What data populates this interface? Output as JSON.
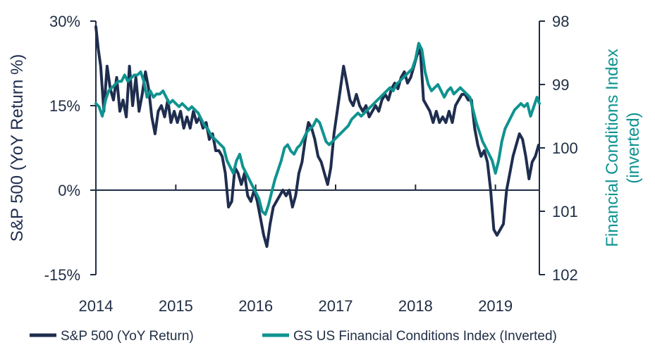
{
  "chart_data": {
    "type": "line",
    "left_axis": {
      "label": "S&P 500 (YoY Return %)",
      "range": [
        -15,
        30
      ],
      "ticks": [
        {
          "value": 30,
          "label": "30%"
        },
        {
          "value": 15,
          "label": "15%"
        },
        {
          "value": 0,
          "label": "0%"
        },
        {
          "value": -15,
          "label": "-15%"
        }
      ]
    },
    "right_axis": {
      "label_line1": "Financial Conditions Index",
      "label_line2": "(inverted)",
      "range": [
        98,
        102
      ],
      "inverted": true,
      "ticks": [
        {
          "value": 98,
          "label": "98"
        },
        {
          "value": 99,
          "label": "99"
        },
        {
          "value": 100,
          "label": "100"
        },
        {
          "value": 101,
          "label": "101"
        },
        {
          "value": 102,
          "label": "102"
        }
      ]
    },
    "x_axis": {
      "range": [
        2014.0,
        2019.55
      ],
      "ticks": [
        {
          "value": 2014,
          "label": "2014"
        },
        {
          "value": 2015,
          "label": "2015"
        },
        {
          "value": 2016,
          "label": "2016"
        },
        {
          "value": 2017,
          "label": "2017"
        },
        {
          "value": 2018,
          "label": "2018"
        },
        {
          "value": 2019,
          "label": "2019"
        }
      ]
    },
    "colors": {
      "sp500": "#1f2d4e",
      "fci": "#0f9390",
      "axis": "#1f2d44"
    },
    "legend_position": "bottom",
    "series": [
      {
        "name": "S&P 500 (YoY Return)",
        "axis": "left",
        "color": "#1f2d4e",
        "points": [
          [
            2014.0,
            29
          ],
          [
            2014.03,
            25
          ],
          [
            2014.06,
            22
          ],
          [
            2014.1,
            14
          ],
          [
            2014.14,
            22
          ],
          [
            2014.18,
            18
          ],
          [
            2014.22,
            16
          ],
          [
            2014.26,
            20
          ],
          [
            2014.3,
            14
          ],
          [
            2014.34,
            16
          ],
          [
            2014.38,
            13
          ],
          [
            2014.42,
            22
          ],
          [
            2014.46,
            15
          ],
          [
            2014.5,
            20
          ],
          [
            2014.54,
            14
          ],
          [
            2014.58,
            17
          ],
          [
            2014.62,
            21
          ],
          [
            2014.66,
            18
          ],
          [
            2014.7,
            13
          ],
          [
            2014.74,
            10
          ],
          [
            2014.78,
            14
          ],
          [
            2014.82,
            15
          ],
          [
            2014.86,
            13
          ],
          [
            2014.9,
            16
          ],
          [
            2014.94,
            12
          ],
          [
            2014.98,
            14
          ],
          [
            2015.02,
            12
          ],
          [
            2015.06,
            14
          ],
          [
            2015.1,
            11
          ],
          [
            2015.14,
            13
          ],
          [
            2015.18,
            11
          ],
          [
            2015.22,
            14
          ],
          [
            2015.26,
            12
          ],
          [
            2015.3,
            13
          ],
          [
            2015.34,
            11
          ],
          [
            2015.38,
            12
          ],
          [
            2015.42,
            9
          ],
          [
            2015.46,
            10
          ],
          [
            2015.5,
            7
          ],
          [
            2015.54,
            7
          ],
          [
            2015.58,
            6
          ],
          [
            2015.62,
            3
          ],
          [
            2015.66,
            -3
          ],
          [
            2015.7,
            -2
          ],
          [
            2015.74,
            4
          ],
          [
            2015.78,
            3
          ],
          [
            2015.82,
            1
          ],
          [
            2015.86,
            3
          ],
          [
            2015.9,
            -1
          ],
          [
            2015.94,
            -2
          ],
          [
            2015.98,
            0
          ],
          [
            2016.02,
            -2
          ],
          [
            2016.06,
            -5
          ],
          [
            2016.1,
            -8
          ],
          [
            2016.14,
            -10
          ],
          [
            2016.18,
            -6
          ],
          [
            2016.22,
            -3
          ],
          [
            2016.26,
            -2
          ],
          [
            2016.3,
            -1
          ],
          [
            2016.34,
            0
          ],
          [
            2016.38,
            -1
          ],
          [
            2016.42,
            0
          ],
          [
            2016.46,
            -3
          ],
          [
            2016.5,
            -1
          ],
          [
            2016.54,
            3
          ],
          [
            2016.58,
            5
          ],
          [
            2016.62,
            9
          ],
          [
            2016.66,
            12
          ],
          [
            2016.7,
            11
          ],
          [
            2016.74,
            9
          ],
          [
            2016.78,
            6
          ],
          [
            2016.82,
            5
          ],
          [
            2016.86,
            3
          ],
          [
            2016.9,
            1
          ],
          [
            2016.94,
            4
          ],
          [
            2016.98,
            10
          ],
          [
            2017.02,
            14
          ],
          [
            2017.06,
            18
          ],
          [
            2017.1,
            22
          ],
          [
            2017.14,
            19
          ],
          [
            2017.18,
            16
          ],
          [
            2017.22,
            15
          ],
          [
            2017.26,
            17
          ],
          [
            2017.3,
            15
          ],
          [
            2017.34,
            14
          ],
          [
            2017.38,
            15
          ],
          [
            2017.42,
            13
          ],
          [
            2017.46,
            14
          ],
          [
            2017.5,
            15
          ],
          [
            2017.54,
            14
          ],
          [
            2017.58,
            16
          ],
          [
            2017.62,
            17
          ],
          [
            2017.66,
            16
          ],
          [
            2017.7,
            18
          ],
          [
            2017.74,
            19
          ],
          [
            2017.78,
            18
          ],
          [
            2017.82,
            20
          ],
          [
            2017.86,
            21
          ],
          [
            2017.9,
            19
          ],
          [
            2017.94,
            20
          ],
          [
            2017.98,
            22
          ],
          [
            2018.02,
            24
          ],
          [
            2018.06,
            25
          ],
          [
            2018.1,
            16
          ],
          [
            2018.14,
            15
          ],
          [
            2018.18,
            14
          ],
          [
            2018.22,
            12
          ],
          [
            2018.26,
            14
          ],
          [
            2018.3,
            12
          ],
          [
            2018.34,
            13
          ],
          [
            2018.38,
            12
          ],
          [
            2018.42,
            14
          ],
          [
            2018.46,
            12
          ],
          [
            2018.5,
            15
          ],
          [
            2018.54,
            16
          ],
          [
            2018.58,
            17
          ],
          [
            2018.62,
            17
          ],
          [
            2018.66,
            16
          ],
          [
            2018.7,
            16
          ],
          [
            2018.74,
            11
          ],
          [
            2018.78,
            8
          ],
          [
            2018.82,
            6
          ],
          [
            2018.86,
            7
          ],
          [
            2018.9,
            5
          ],
          [
            2018.94,
            0
          ],
          [
            2018.98,
            -7
          ],
          [
            2019.02,
            -8
          ],
          [
            2019.06,
            -7
          ],
          [
            2019.1,
            -6
          ],
          [
            2019.14,
            0
          ],
          [
            2019.18,
            3
          ],
          [
            2019.22,
            6
          ],
          [
            2019.26,
            8
          ],
          [
            2019.3,
            10
          ],
          [
            2019.34,
            9
          ],
          [
            2019.38,
            6
          ],
          [
            2019.42,
            2
          ],
          [
            2019.46,
            5
          ],
          [
            2019.5,
            6
          ],
          [
            2019.54,
            8
          ]
        ]
      },
      {
        "name": "GS US Financial Conditions Index (Inverted)",
        "axis": "right",
        "color": "#0f9390",
        "points": [
          [
            2014.0,
            99.3
          ],
          [
            2014.04,
            99.35
          ],
          [
            2014.08,
            99.5
          ],
          [
            2014.12,
            99.25
          ],
          [
            2014.16,
            99.1
          ],
          [
            2014.2,
            99.05
          ],
          [
            2014.24,
            99.0
          ],
          [
            2014.28,
            98.95
          ],
          [
            2014.32,
            98.95
          ],
          [
            2014.36,
            98.85
          ],
          [
            2014.4,
            98.95
          ],
          [
            2014.44,
            98.9
          ],
          [
            2014.48,
            98.85
          ],
          [
            2014.52,
            98.85
          ],
          [
            2014.56,
            98.8
          ],
          [
            2014.6,
            98.95
          ],
          [
            2014.64,
            99.2
          ],
          [
            2014.68,
            99.1
          ],
          [
            2014.72,
            99.2
          ],
          [
            2014.76,
            99.15
          ],
          [
            2014.8,
            99.15
          ],
          [
            2014.84,
            99.1
          ],
          [
            2014.88,
            99.2
          ],
          [
            2014.92,
            99.3
          ],
          [
            2014.96,
            99.25
          ],
          [
            2015.0,
            99.3
          ],
          [
            2015.04,
            99.35
          ],
          [
            2015.08,
            99.3
          ],
          [
            2015.12,
            99.35
          ],
          [
            2015.16,
            99.4
          ],
          [
            2015.2,
            99.35
          ],
          [
            2015.24,
            99.4
          ],
          [
            2015.28,
            99.45
          ],
          [
            2015.32,
            99.55
          ],
          [
            2015.36,
            99.65
          ],
          [
            2015.4,
            99.7
          ],
          [
            2015.44,
            99.8
          ],
          [
            2015.48,
            99.85
          ],
          [
            2015.52,
            99.9
          ],
          [
            2015.56,
            99.95
          ],
          [
            2015.6,
            100.0
          ],
          [
            2015.64,
            100.2
          ],
          [
            2015.68,
            100.3
          ],
          [
            2015.72,
            100.4
          ],
          [
            2015.76,
            100.2
          ],
          [
            2015.8,
            100.1
          ],
          [
            2015.84,
            100.3
          ],
          [
            2015.88,
            100.4
          ],
          [
            2015.92,
            100.5
          ],
          [
            2015.96,
            100.6
          ],
          [
            2016.0,
            100.7
          ],
          [
            2016.04,
            100.8
          ],
          [
            2016.08,
            101.0
          ],
          [
            2016.12,
            101.05
          ],
          [
            2016.16,
            100.9
          ],
          [
            2016.2,
            100.7
          ],
          [
            2016.24,
            100.5
          ],
          [
            2016.28,
            100.35
          ],
          [
            2016.32,
            100.2
          ],
          [
            2016.36,
            100.0
          ],
          [
            2016.4,
            99.95
          ],
          [
            2016.44,
            100.05
          ],
          [
            2016.48,
            100.1
          ],
          [
            2016.52,
            100.0
          ],
          [
            2016.56,
            99.95
          ],
          [
            2016.6,
            99.85
          ],
          [
            2016.64,
            99.75
          ],
          [
            2016.68,
            99.7
          ],
          [
            2016.72,
            99.65
          ],
          [
            2016.76,
            99.55
          ],
          [
            2016.8,
            99.6
          ],
          [
            2016.84,
            99.75
          ],
          [
            2016.88,
            99.9
          ],
          [
            2016.92,
            99.95
          ],
          [
            2016.96,
            99.9
          ],
          [
            2017.0,
            99.85
          ],
          [
            2017.04,
            99.8
          ],
          [
            2017.08,
            99.75
          ],
          [
            2017.12,
            99.7
          ],
          [
            2017.16,
            99.65
          ],
          [
            2017.2,
            99.55
          ],
          [
            2017.24,
            99.5
          ],
          [
            2017.28,
            99.45
          ],
          [
            2017.32,
            99.5
          ],
          [
            2017.36,
            99.45
          ],
          [
            2017.4,
            99.4
          ],
          [
            2017.44,
            99.35
          ],
          [
            2017.48,
            99.3
          ],
          [
            2017.52,
            99.25
          ],
          [
            2017.56,
            99.2
          ],
          [
            2017.6,
            99.15
          ],
          [
            2017.64,
            99.1
          ],
          [
            2017.68,
            99.05
          ],
          [
            2017.72,
            99.1
          ],
          [
            2017.76,
            99.0
          ],
          [
            2017.8,
            98.95
          ],
          [
            2017.84,
            98.9
          ],
          [
            2017.88,
            98.85
          ],
          [
            2017.92,
            98.8
          ],
          [
            2017.96,
            98.75
          ],
          [
            2018.0,
            98.6
          ],
          [
            2018.04,
            98.35
          ],
          [
            2018.08,
            98.45
          ],
          [
            2018.12,
            98.8
          ],
          [
            2018.16,
            99.0
          ],
          [
            2018.2,
            99.1
          ],
          [
            2018.24,
            99.05
          ],
          [
            2018.28,
            99.0
          ],
          [
            2018.32,
            99.1
          ],
          [
            2018.36,
            99.2
          ],
          [
            2018.4,
            99.1
          ],
          [
            2018.44,
            99.05
          ],
          [
            2018.48,
            99.15
          ],
          [
            2018.52,
            99.1
          ],
          [
            2018.56,
            99.05
          ],
          [
            2018.6,
            99.1
          ],
          [
            2018.64,
            99.15
          ],
          [
            2018.68,
            99.2
          ],
          [
            2018.72,
            99.4
          ],
          [
            2018.76,
            99.6
          ],
          [
            2018.8,
            99.75
          ],
          [
            2018.84,
            99.9
          ],
          [
            2018.88,
            100.0
          ],
          [
            2018.92,
            100.1
          ],
          [
            2018.96,
            100.2
          ],
          [
            2019.0,
            100.4
          ],
          [
            2019.04,
            100.2
          ],
          [
            2019.08,
            99.9
          ],
          [
            2019.12,
            99.7
          ],
          [
            2019.16,
            99.6
          ],
          [
            2019.2,
            99.5
          ],
          [
            2019.24,
            99.4
          ],
          [
            2019.28,
            99.35
          ],
          [
            2019.32,
            99.3
          ],
          [
            2019.36,
            99.35
          ],
          [
            2019.4,
            99.3
          ],
          [
            2019.44,
            99.5
          ],
          [
            2019.48,
            99.35
          ],
          [
            2019.52,
            99.2
          ],
          [
            2019.55,
            99.3
          ]
        ]
      }
    ]
  }
}
